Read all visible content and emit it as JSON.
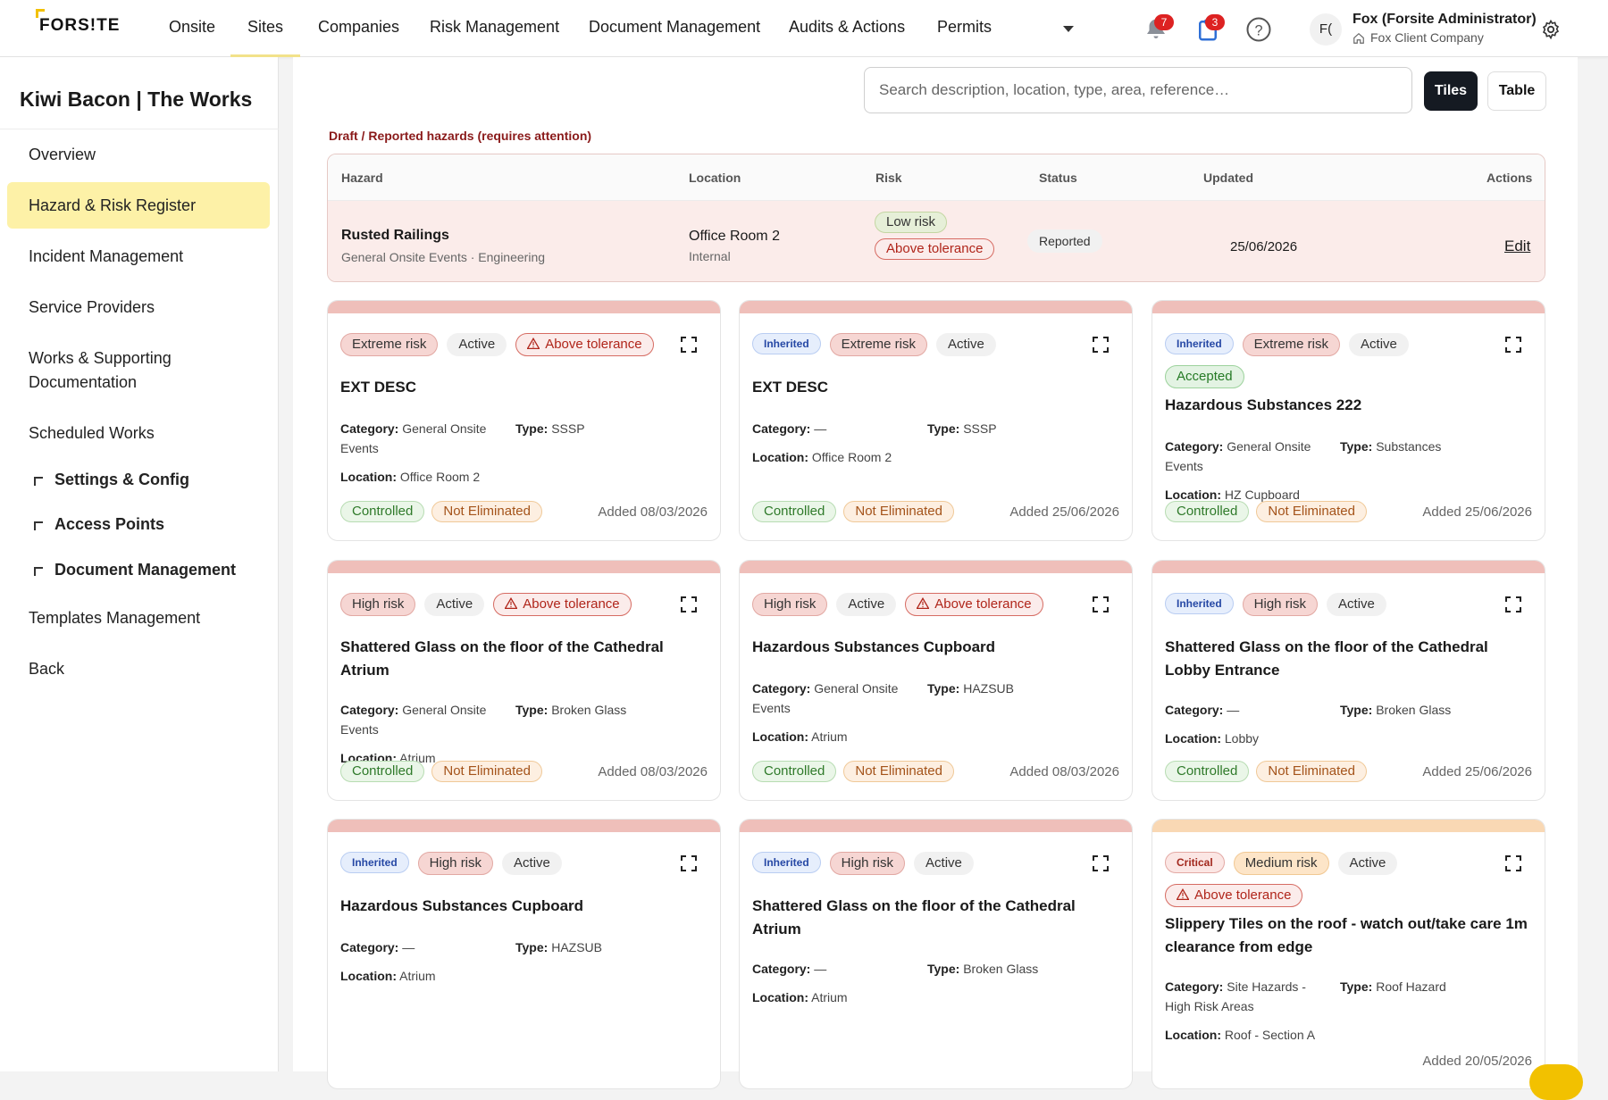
{
  "brand": "FORS!TE",
  "nav": [
    "Onsite",
    "Sites",
    "Companies",
    "Risk Management",
    "Document Management",
    "Audits & Actions",
    "Permits"
  ],
  "nav_active": "Sites",
  "notifications_count": "7",
  "tasks_count": "3",
  "user": {
    "initials": "F(",
    "name": "Fox (Forsite Administrator)",
    "company": "Fox Client Company"
  },
  "sidebar": {
    "site_title": "Kiwi Bacon | The Works",
    "items": [
      "Overview",
      "Hazard & Risk Register",
      "Incident Management",
      "Service Providers",
      "Works & Supporting Documentation",
      "Scheduled Works",
      "Settings & Config",
      "Access Points",
      "Document Management",
      "Templates Management",
      "Back"
    ],
    "active": "Hazard & Risk Register"
  },
  "search": {
    "placeholder": "Search description, location, type, area, reference…"
  },
  "view_toggle": {
    "tiles": "Tiles",
    "table": "Table",
    "active": "Tiles"
  },
  "draft_section": {
    "heading": "Draft / Reported hazards (requires attention)",
    "columns": [
      "Hazard",
      "Location",
      "Risk",
      "Status",
      "Updated",
      "Actions"
    ],
    "row": {
      "name": "Rusted Railings",
      "sub": "General Onsite Events · Engineering",
      "location": "Office Room 2",
      "location_type": "Internal",
      "risk": "Low risk",
      "tolerance": "Above tolerance",
      "status": "Reported",
      "updated": "25/06/2026",
      "action": "Edit"
    }
  },
  "labels": {
    "category": "Category:",
    "type": "Type:",
    "location": "Location:"
  },
  "cards": [
    {
      "band": "red",
      "tags": [
        "Extreme risk",
        "Active",
        "Above tolerance"
      ],
      "title": "EXT DESC",
      "category": "General Onsite Events",
      "type": "SSSP",
      "location": "Office Room 2",
      "controls": [
        "Controlled",
        "Not Eliminated"
      ],
      "added": "Added 08/03/2026"
    },
    {
      "band": "red",
      "tags": [
        "Inherited",
        "Extreme risk",
        "Active"
      ],
      "title": "EXT DESC",
      "category": "—",
      "type": "SSSP",
      "location": "Office Room 2",
      "controls": [
        "Controlled",
        "Not Eliminated"
      ],
      "added": "Added 25/06/2026"
    },
    {
      "band": "red",
      "tags": [
        "Inherited",
        "Extreme risk",
        "Active",
        "Accepted"
      ],
      "title": "Hazardous Substances 222",
      "category": "General Onsite Events",
      "type": "Substances",
      "location": "HZ Cupboard",
      "controls": [
        "Controlled",
        "Not Eliminated"
      ],
      "added": "Added 25/06/2026"
    },
    {
      "band": "red",
      "tags": [
        "High risk",
        "Active",
        "Above tolerance"
      ],
      "title": "Shattered Glass on the floor of the Cathedral Atrium",
      "category": "General Onsite Events",
      "type": "Broken Glass",
      "location": "Atrium",
      "controls": [
        "Controlled",
        "Not Eliminated"
      ],
      "added": "Added 08/03/2026"
    },
    {
      "band": "red",
      "tags": [
        "High risk",
        "Active",
        "Above tolerance"
      ],
      "title": "Hazardous Substances Cupboard",
      "category": "General Onsite Events",
      "type": "HAZSUB",
      "location": "Atrium",
      "controls": [
        "Controlled",
        "Not Eliminated"
      ],
      "added": "Added 08/03/2026"
    },
    {
      "band": "red",
      "tags": [
        "Inherited",
        "High risk",
        "Active"
      ],
      "title": "Shattered Glass on the floor of the Cathedral Lobby Entrance",
      "category": "—",
      "type": "Broken Glass",
      "location": "Lobby",
      "controls": [
        "Controlled",
        "Not Eliminated"
      ],
      "added": "Added 25/06/2026"
    },
    {
      "band": "red",
      "tags": [
        "Inherited",
        "High risk",
        "Active"
      ],
      "title": "Hazardous Substances Cupboard",
      "category": "—",
      "type": "HAZSUB",
      "location": "Atrium",
      "controls": [],
      "added": ""
    },
    {
      "band": "red",
      "tags": [
        "Inherited",
        "High risk",
        "Active"
      ],
      "title": "Shattered Glass on the floor of the Cathedral Atrium",
      "category": "—",
      "type": "Broken Glass",
      "location": "Atrium",
      "controls": [],
      "added": ""
    },
    {
      "band": "orange",
      "tags": [
        "Critical",
        "Medium risk",
        "Active",
        "Above tolerance"
      ],
      "title": "Slippery Tiles on the roof - watch out/take care 1m clearance from edge",
      "category": "Site Hazards - High Risk Areas",
      "type": "Roof Hazard",
      "location": "Roof - Section A",
      "controls": [],
      "added": "Added 20/05/2026"
    }
  ]
}
